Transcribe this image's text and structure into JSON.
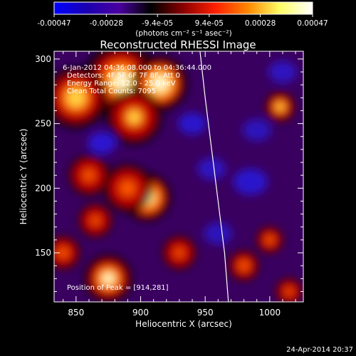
{
  "chart_data": {
    "type": "heatmap",
    "title": "Reconstructed RHESSI Image",
    "xlabel": "Heliocentric X (arcsec)",
    "ylabel": "Heliocentric Y (arcsec)",
    "xlim": [
      833,
      1026
    ],
    "ylim": [
      112,
      306
    ],
    "x_ticks": [
      850,
      900,
      950,
      1000
    ],
    "y_ticks": [
      150,
      200,
      250,
      300
    ],
    "x_tick_labels": [
      "850",
      "900",
      "950",
      "1000"
    ],
    "y_tick_labels": [
      "150",
      "200",
      "250",
      "300"
    ],
    "colorbar": {
      "range": [
        -0.00047,
        0.00047
      ],
      "ticks": [
        -0.00047,
        -0.00028,
        -9.4e-05,
        9.4e-05,
        0.00028,
        0.00047
      ],
      "tick_labels": [
        "-0.00047",
        "-0.00028",
        "-9.4e-05",
        "9.4e-05",
        "0.00028",
        "0.00047"
      ],
      "unit_label": "(photons cm⁻² s⁻¹ asec⁻²)",
      "colors": [
        "#0000ff",
        "#1a00b0",
        "#4a00a0",
        "#000000",
        "#8a0000",
        "#ff2000",
        "#ff8800",
        "#ffff66",
        "#ffffff"
      ]
    },
    "annotations": {
      "time": "6-Jan-2012 04:36:08.000 to 04:36:44.000",
      "detectors": "Detectors: 4F 5F 6F 7F 8F, Att 0",
      "energy": "Energy Range: 12.0 - 25.0 keV",
      "method": "Clean    Total Counts: 7095",
      "peak": "Position of Peak = [914,281]"
    },
    "peak": [
      914,
      281
    ],
    "hot_regions": [
      {
        "x": 885,
        "y": 283,
        "amp": 1.0,
        "r": 22
      },
      {
        "x": 915,
        "y": 281,
        "amp": 1.3,
        "r": 16
      },
      {
        "x": 850,
        "y": 270,
        "amp": 0.9,
        "r": 18
      },
      {
        "x": 895,
        "y": 255,
        "amp": 0.7,
        "r": 16
      },
      {
        "x": 905,
        "y": 193,
        "amp": 1.2,
        "r": 14
      },
      {
        "x": 890,
        "y": 200,
        "amp": 0.6,
        "r": 14
      },
      {
        "x": 875,
        "y": 130,
        "amp": 1.0,
        "r": 14
      },
      {
        "x": 860,
        "y": 210,
        "amp": 0.5,
        "r": 12
      },
      {
        "x": 1008,
        "y": 263,
        "amp": 0.8,
        "r": 9
      },
      {
        "x": 980,
        "y": 140,
        "amp": 0.6,
        "r": 9
      },
      {
        "x": 1000,
        "y": 160,
        "amp": 0.55,
        "r": 8
      },
      {
        "x": 840,
        "y": 150,
        "amp": 0.55,
        "r": 10
      },
      {
        "x": 930,
        "y": 150,
        "amp": 0.45,
        "r": 10
      },
      {
        "x": 1015,
        "y": 120,
        "amp": 0.45,
        "r": 8
      },
      {
        "x": 865,
        "y": 175,
        "amp": 0.45,
        "r": 10
      }
    ],
    "cool_regions": [
      {
        "x": 870,
        "y": 235,
        "amp": 0.9,
        "r": 10
      },
      {
        "x": 940,
        "y": 250,
        "amp": 0.8,
        "r": 10
      },
      {
        "x": 985,
        "y": 205,
        "amp": 0.8,
        "r": 12
      },
      {
        "x": 955,
        "y": 215,
        "amp": 0.6,
        "r": 10
      },
      {
        "x": 1010,
        "y": 290,
        "amp": 0.6,
        "r": 10
      },
      {
        "x": 960,
        "y": 165,
        "amp": 0.5,
        "r": 10
      },
      {
        "x": 990,
        "y": 245,
        "amp": 0.5,
        "r": 10
      }
    ],
    "limb": {
      "x": [
        946,
        950,
        955,
        960,
        965,
        968
      ],
      "y": [
        306,
        270,
        230,
        190,
        150,
        112
      ]
    }
  },
  "footer": {
    "timestamp": "24-Apr-2014 20:37"
  }
}
